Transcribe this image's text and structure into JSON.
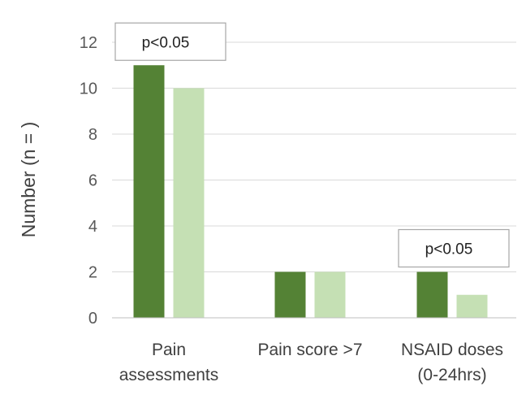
{
  "chart_data": {
    "type": "bar",
    "categories": [
      [
        "Pain",
        "assessments"
      ],
      [
        "Pain score >7"
      ],
      [
        "NSAID doses",
        "(0-24hrs)"
      ]
    ],
    "series": [
      {
        "values": [
          11,
          2,
          2
        ],
        "color": "#548235"
      },
      {
        "values": [
          10,
          2,
          1
        ],
        "color": "#c5e0b4"
      }
    ],
    "ylabel": "Number (n = )",
    "ylim": [
      0,
      12
    ],
    "yticks": [
      0,
      2,
      4,
      6,
      8,
      10,
      12
    ],
    "grid": true,
    "legend": false,
    "annotations": [
      {
        "text": "p<0.05",
        "category": 0
      },
      {
        "text": "p<0.05",
        "category": 2
      }
    ]
  }
}
